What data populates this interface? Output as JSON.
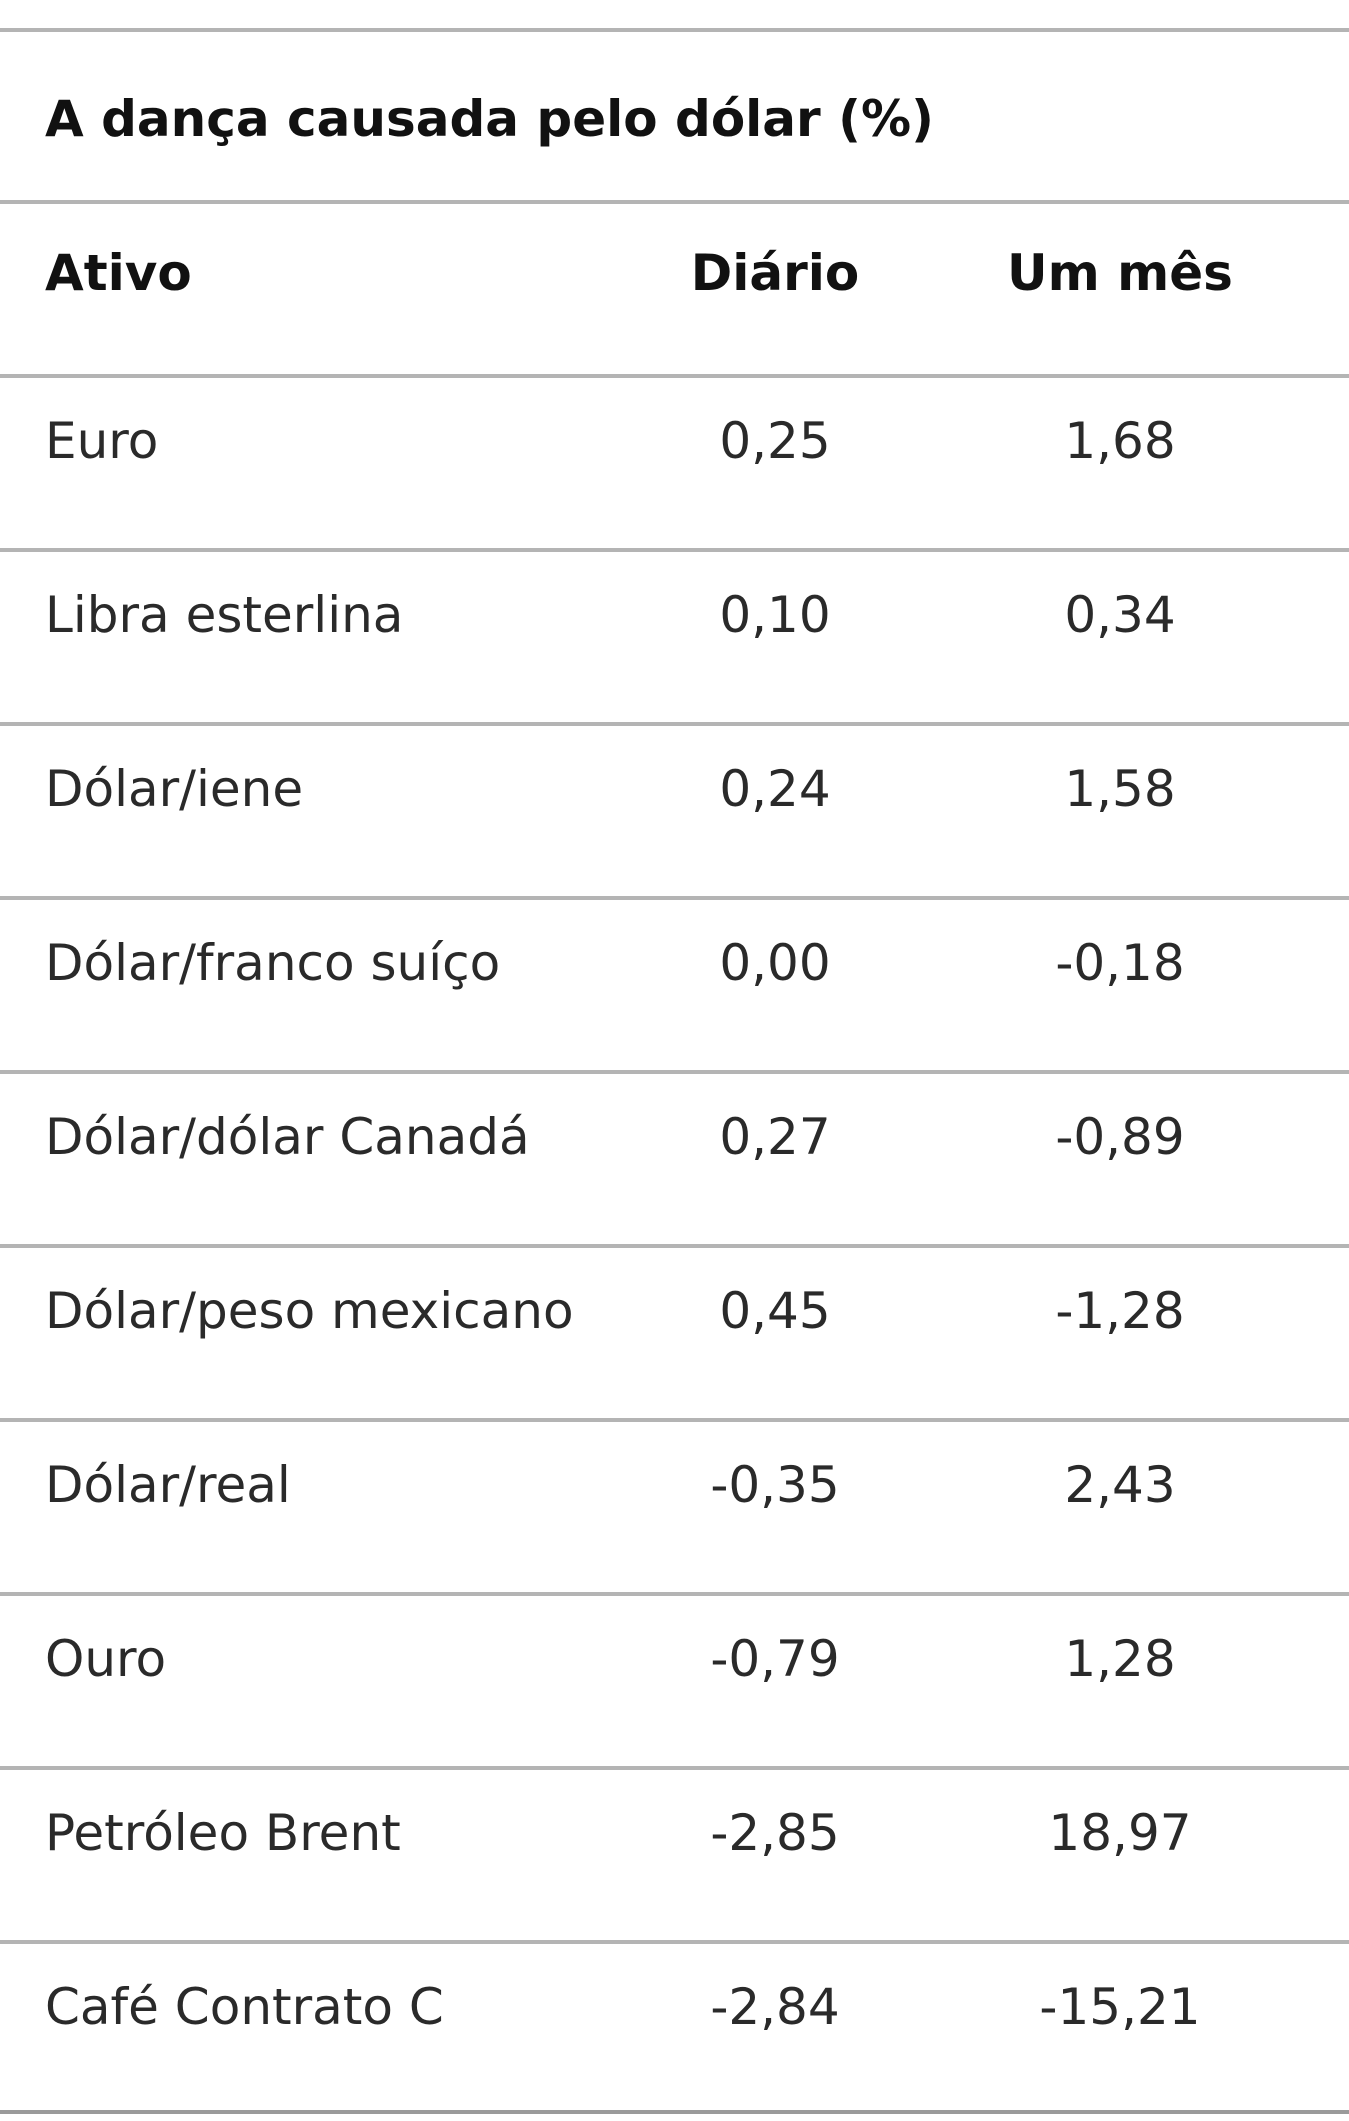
{
  "table": {
    "title": "A dança causada pelo dólar (%)",
    "header": [
      "Ativo",
      "Diário",
      "Um mês"
    ],
    "rows": [
      [
        "Euro",
        "0,25",
        "1,68"
      ],
      [
        "Libra esterlina",
        "0,10",
        "0,34"
      ],
      [
        "Dólar/iene",
        "0,24",
        "1,58"
      ],
      [
        "Dólar/franco suíço",
        "0,00",
        "-0,18"
      ],
      [
        "Dólar/dólar Canadá",
        "0,27",
        "-0,89"
      ],
      [
        "Dólar/peso mexicano",
        "0,45",
        "-1,28"
      ],
      [
        "Dólar/real",
        "-0,35",
        "2,43"
      ],
      [
        "Ouro",
        "-0,79",
        "1,28"
      ],
      [
        "Petróleo Brent",
        "-2,85",
        "18,97"
      ],
      [
        "Café Contrato C",
        "-2,84",
        "-15,21"
      ]
    ]
  }
}
